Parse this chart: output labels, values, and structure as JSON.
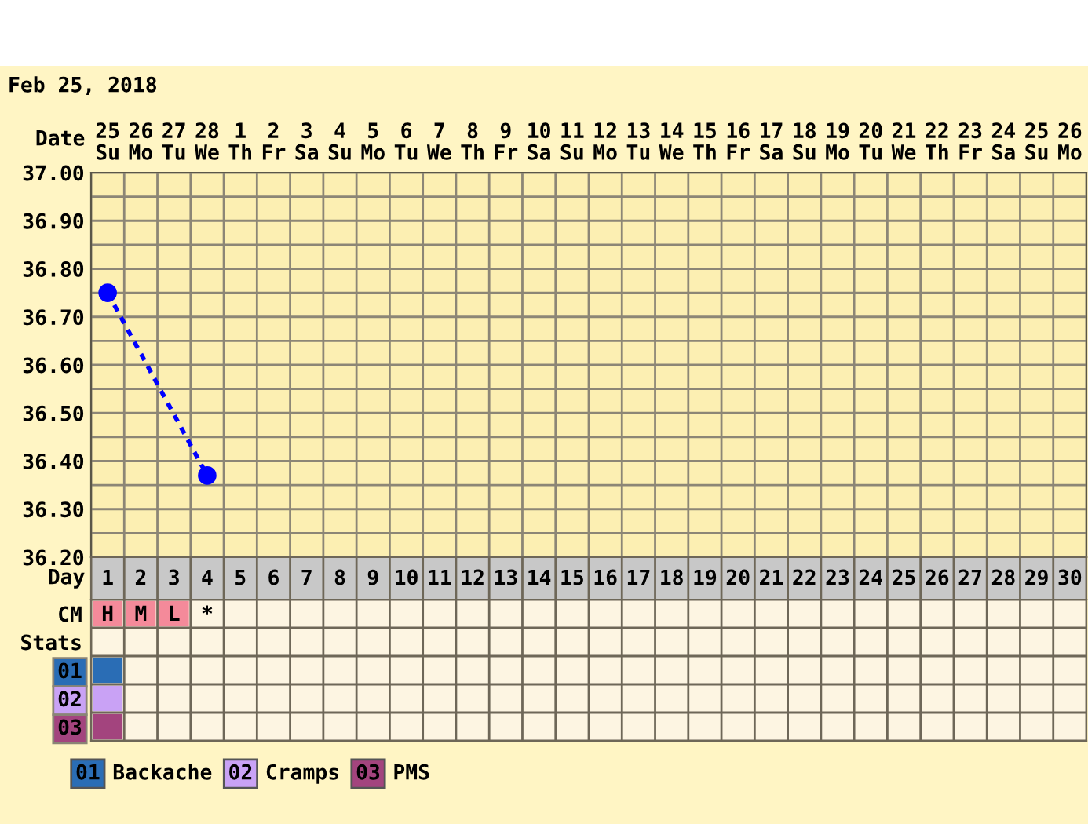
{
  "chart_data": [
    {
      "type": "line",
      "title": "Feb 25, 2018",
      "xlabel": "Date",
      "categories": [
        "25\nSu",
        "26\nMo",
        "27\nTu",
        "28\nWe",
        "1\nTh",
        "2\nFr",
        "3\nSa",
        "4\nSu",
        "5\nMo",
        "6\nTu",
        "7\nWe",
        "8\nTh",
        "9\nFr",
        "10\nSa",
        "11\nSu",
        "12\nMo",
        "13\nTu",
        "14\nWe",
        "15\nTh",
        "16\nFr",
        "17\nSa",
        "18\nSu",
        "19\nMo",
        "20\nTu",
        "21\nWe",
        "22\nTh",
        "23\nFr",
        "24\nSa",
        "25\nSu",
        "26\nMo"
      ],
      "series": [
        {
          "color": "#0000ff",
          "values": [
            36.75,
            null,
            null,
            36.37,
            null,
            null,
            null,
            null,
            null,
            null,
            null,
            null,
            null,
            null,
            null,
            null,
            null,
            null,
            null,
            null,
            null,
            null,
            null,
            null,
            null,
            null,
            null,
            null,
            null,
            null
          ]
        }
      ],
      "ylim": [
        36.2,
        37.0
      ],
      "yticks": [
        {
          "value": 36.2,
          "label": "36.20"
        },
        {
          "value": 36.25,
          "label": null
        },
        {
          "value": 36.3,
          "label": "36.30"
        },
        {
          "value": 36.35,
          "label": null
        },
        {
          "value": 36.4,
          "label": "36.40"
        },
        {
          "value": 36.45,
          "label": null
        },
        {
          "value": 36.5,
          "label": "36.50"
        },
        {
          "value": 36.55,
          "label": null
        },
        {
          "value": 36.6,
          "label": "36.60"
        },
        {
          "value": 36.65,
          "label": null
        },
        {
          "value": 36.7,
          "label": "36.70"
        },
        {
          "value": 36.75,
          "label": null
        },
        {
          "value": 36.8,
          "label": "36.80"
        },
        {
          "value": 36.85,
          "label": null
        },
        {
          "value": 36.9,
          "label": "36.90"
        },
        {
          "value": 36.95,
          "label": null
        },
        {
          "value": 37.0,
          "label": "37.00"
        }
      ],
      "x2label": "Day",
      "x2lim": [
        0.5,
        30.5
      ],
      "x2ticks": [
        1,
        2,
        3,
        4,
        5,
        6,
        7,
        8,
        9,
        10,
        11,
        12,
        13,
        14,
        15,
        16,
        17,
        18,
        19,
        20,
        21,
        22,
        23,
        24,
        25,
        26,
        27,
        28,
        29,
        30
      ],
      "grid": true,
      "marker": "circle",
      "line_style": "dashed"
    },
    {
      "type": "other",
      "y_categories": [
        "CM",
        "Stats",
        "01",
        "02",
        "03"
      ],
      "cell_labels": [
        [
          "H",
          "M",
          "L",
          "*",
          null,
          null,
          null,
          null,
          null,
          null,
          null,
          null,
          null,
          null,
          null,
          null,
          null,
          null,
          null,
          null,
          null,
          null,
          null,
          null,
          null,
          null,
          null,
          null,
          null,
          null
        ],
        [
          null,
          null,
          null,
          null,
          null,
          null,
          null,
          null,
          null,
          null,
          null,
          null,
          null,
          null,
          null,
          null,
          null,
          null,
          null,
          null,
          null,
          null,
          null,
          null,
          null,
          null,
          null,
          null,
          null,
          null
        ],
        [
          null,
          null,
          null,
          null,
          null,
          null,
          null,
          null,
          null,
          null,
          null,
          null,
          null,
          null,
          null,
          null,
          null,
          null,
          null,
          null,
          null,
          null,
          null,
          null,
          null,
          null,
          null,
          null,
          null,
          null
        ],
        [
          null,
          null,
          null,
          null,
          null,
          null,
          null,
          null,
          null,
          null,
          null,
          null,
          null,
          null,
          null,
          null,
          null,
          null,
          null,
          null,
          null,
          null,
          null,
          null,
          null,
          null,
          null,
          null,
          null,
          null
        ],
        [
          null,
          null,
          null,
          null,
          null,
          null,
          null,
          null,
          null,
          null,
          null,
          null,
          null,
          null,
          null,
          null,
          null,
          null,
          null,
          null,
          null,
          null,
          null,
          null,
          null,
          null,
          null,
          null,
          null,
          null
        ]
      ],
      "colors": [
        [
          "#f48a9a",
          "#f48a9a",
          "#f48a9a",
          null,
          null,
          null,
          null,
          null,
          null,
          null,
          null,
          null,
          null,
          null,
          null,
          null,
          null,
          null,
          null,
          null,
          null,
          null,
          null,
          null,
          null,
          null,
          null,
          null,
          null,
          null
        ],
        [
          null,
          null,
          null,
          null,
          null,
          null,
          null,
          null,
          null,
          null,
          null,
          null,
          null,
          null,
          null,
          null,
          null,
          null,
          null,
          null,
          null,
          null,
          null,
          null,
          null,
          null,
          null,
          null,
          null,
          null
        ],
        [
          "#2a6db5",
          null,
          null,
          null,
          null,
          null,
          null,
          null,
          null,
          null,
          null,
          null,
          null,
          null,
          null,
          null,
          null,
          null,
          null,
          null,
          null,
          null,
          null,
          null,
          null,
          null,
          null,
          null,
          null,
          null
        ],
        [
          "#c9a2f5",
          null,
          null,
          null,
          null,
          null,
          null,
          null,
          null,
          null,
          null,
          null,
          null,
          null,
          null,
          null,
          null,
          null,
          null,
          null,
          null,
          null,
          null,
          null,
          null,
          null,
          null,
          null,
          null,
          null
        ],
        [
          "#a3447e",
          null,
          null,
          null,
          null,
          null,
          null,
          null,
          null,
          null,
          null,
          null,
          null,
          null,
          null,
          null,
          null,
          null,
          null,
          null,
          null,
          null,
          null,
          null,
          null,
          null,
          null,
          null,
          null,
          null
        ]
      ],
      "series": [
        {
          "name": "Backache",
          "color": "#2a6db5"
        },
        {
          "name": "Cramps",
          "color": "#c9a2f5"
        },
        {
          "name": "PMS",
          "color": "#a3447e"
        }
      ],
      "legend": "bottom left"
    }
  ]
}
